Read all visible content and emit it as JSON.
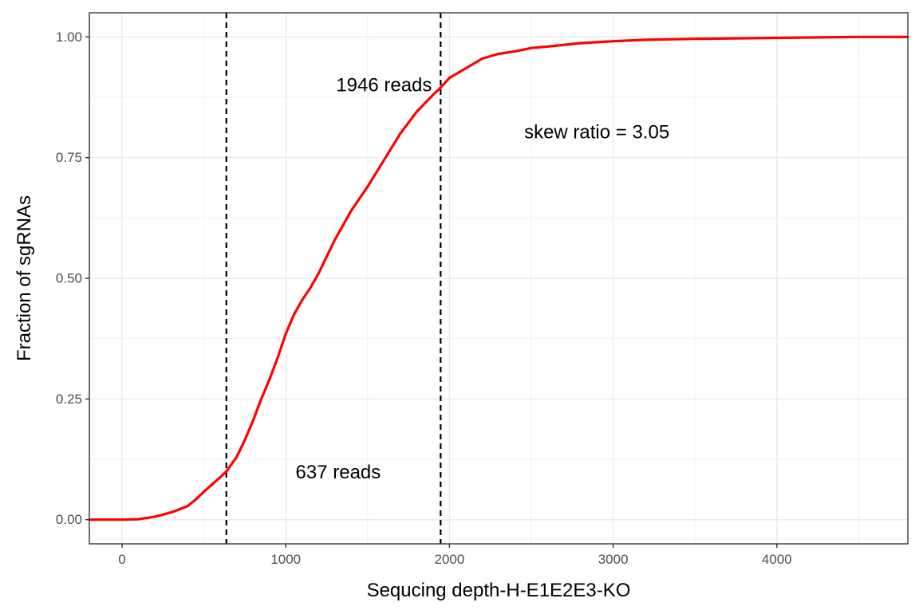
{
  "chart_data": {
    "type": "line",
    "title": "",
    "xlabel": "Sequcing depth-H-E1E2E3-KO",
    "ylabel": "Fraction of sgRNAs",
    "xlim": [
      -200,
      4800
    ],
    "ylim": [
      -0.05,
      1.05
    ],
    "x_ticks": [
      0,
      1000,
      2000,
      3000,
      4000
    ],
    "x_tick_labels": [
      "0",
      "1000",
      "2000",
      "3000",
      "4000"
    ],
    "y_ticks": [
      0,
      0.25,
      0.5,
      0.75,
      1.0
    ],
    "y_tick_labels": [
      "0.00",
      "0.25",
      "0.50",
      "0.75",
      "1.00"
    ],
    "grid": true,
    "series": [
      {
        "color": "#ff0000",
        "x": [
          -200,
          0,
          100,
          200,
          300,
          400,
          450,
          500,
          550,
          600,
          637,
          700,
          750,
          800,
          850,
          900,
          950,
          1000,
          1050,
          1100,
          1150,
          1200,
          1300,
          1400,
          1500,
          1600,
          1700,
          1800,
          1900,
          1946,
          2000,
          2100,
          2200,
          2300,
          2400,
          2500,
          2600,
          2800,
          3000,
          3200,
          3500,
          4000,
          4500,
          4800
        ],
        "y": [
          0.0,
          0.0,
          0.001,
          0.006,
          0.015,
          0.028,
          0.042,
          0.058,
          0.073,
          0.088,
          0.1,
          0.13,
          0.165,
          0.205,
          0.25,
          0.29,
          0.335,
          0.385,
          0.425,
          0.455,
          0.48,
          0.51,
          0.58,
          0.64,
          0.69,
          0.745,
          0.8,
          0.845,
          0.88,
          0.895,
          0.915,
          0.935,
          0.955,
          0.965,
          0.97,
          0.977,
          0.98,
          0.987,
          0.991,
          0.994,
          0.996,
          0.998,
          1.0,
          1.0
        ]
      }
    ],
    "vlines": [
      637,
      1946
    ],
    "annotations": [
      {
        "text": "637 reads",
        "x": 1320,
        "y": 0.098
      },
      {
        "text": "1946 reads",
        "x": 1600,
        "y": 0.9
      },
      {
        "text": "skew ratio = 3.05",
        "x": 2900,
        "y": 0.802
      }
    ]
  }
}
